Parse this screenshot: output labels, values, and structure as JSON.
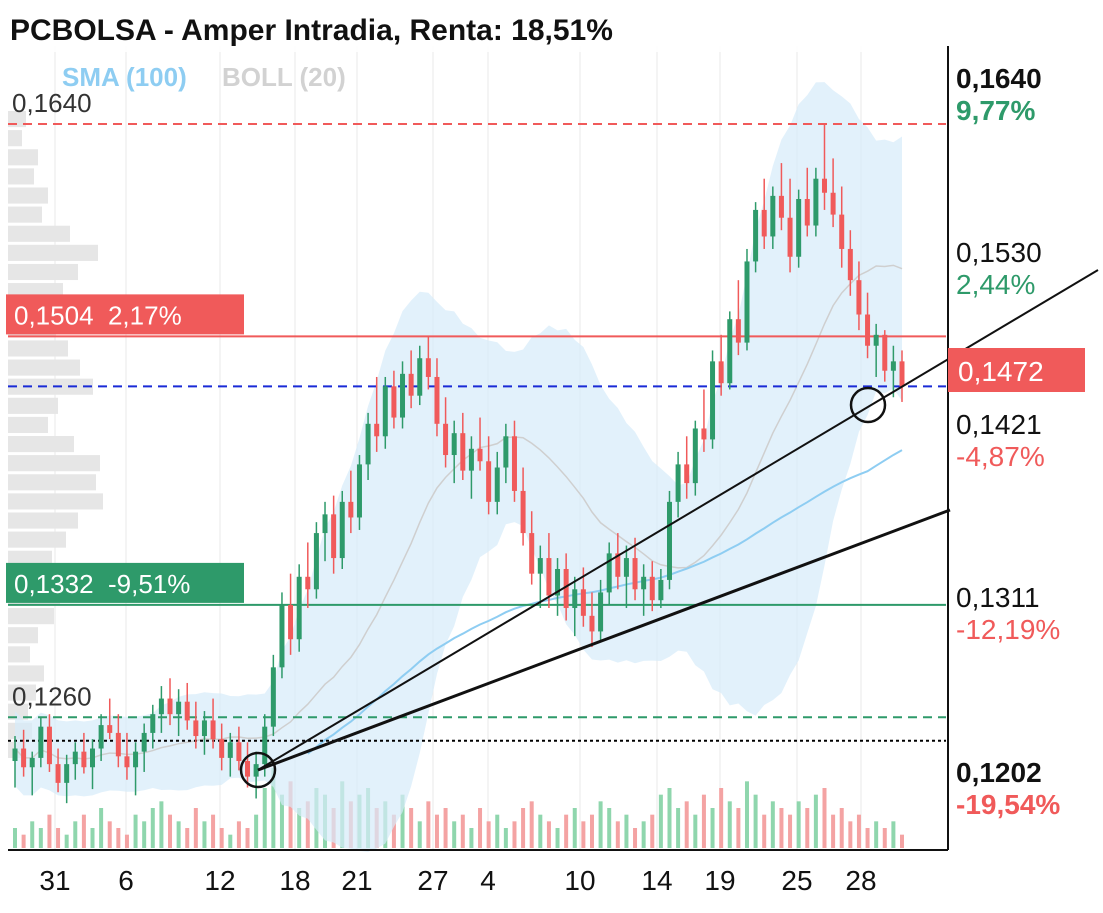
{
  "chart_data": {
    "type": "candlestick",
    "title": "PCBOLSA - Amper Intradia, Renta: 18,51%",
    "indicators": [
      {
        "label": "SMA (100)",
        "color": "#8ecdf2"
      },
      {
        "label": "BOLL (20)",
        "color": "#c9c9c9"
      }
    ],
    "x_ticks": [
      "31",
      "6",
      "12",
      "18",
      "21",
      "27",
      "4",
      "10",
      "14",
      "19",
      "25",
      "28"
    ],
    "y_range": [
      0.1175,
      0.169
    ],
    "right_axis": [
      {
        "price": 0.164,
        "price_label": "0,1640",
        "pct_label": "9,77%",
        "pct_color": "#2e9a6a",
        "bold": true
      },
      {
        "price": 0.153,
        "price_label": "0,1530",
        "pct_label": "2,44%",
        "pct_color": "#2e9a6a",
        "bold": false
      },
      {
        "price": 0.1421,
        "price_label": "0,1421",
        "pct_label": "-4,87%",
        "pct_color": "#f05a5a",
        "bold": false
      },
      {
        "price": 0.1311,
        "price_label": "0,1311",
        "pct_label": "-12,19%",
        "pct_color": "#f05a5a",
        "bold": false
      },
      {
        "price": 0.1202,
        "price_label": "0,1202",
        "pct_label": "-19,54%",
        "pct_color": "#f05a5a",
        "bold": true
      }
    ],
    "current_price": {
      "value": 0.1472,
      "label": "0,1472",
      "color": "#f05a5a"
    },
    "levels": [
      {
        "price": 0.164,
        "label": "0,1640",
        "style": "dashed",
        "color": "#f05a5a"
      },
      {
        "price": 0.1504,
        "label": "0,1504  2,17%",
        "style": "solid",
        "color": "#f05a5a"
      },
      {
        "price": 0.1472,
        "label": "",
        "style": "dashed",
        "color": "#1a2bd6"
      },
      {
        "price": 0.1332,
        "label": "0,1332  -9,51%",
        "style": "solid",
        "color": "#2e9a6a"
      },
      {
        "price": 0.126,
        "label": "0,1260",
        "style": "dashed",
        "color": "#2e9a6a"
      },
      {
        "price": 0.1245,
        "label": "",
        "style": "dotted",
        "color": "#000000"
      }
    ],
    "candles": [
      [
        0.1232,
        0.1248,
        0.1215,
        0.124
      ],
      [
        0.124,
        0.1252,
        0.1222,
        0.1228
      ],
      [
        0.1228,
        0.1238,
        0.121,
        0.1234
      ],
      [
        0.1234,
        0.126,
        0.1228,
        0.1254
      ],
      [
        0.1254,
        0.1262,
        0.1225,
        0.123
      ],
      [
        0.123,
        0.124,
        0.1212,
        0.1218
      ],
      [
        0.1218,
        0.1236,
        0.1205,
        0.123
      ],
      [
        0.123,
        0.1244,
        0.122,
        0.1238
      ],
      [
        0.1238,
        0.125,
        0.1224,
        0.1228
      ],
      [
        0.1228,
        0.1246,
        0.1214,
        0.124
      ],
      [
        0.124,
        0.1262,
        0.1232,
        0.1255
      ],
      [
        0.1255,
        0.1272,
        0.1246,
        0.125
      ],
      [
        0.125,
        0.1262,
        0.1228,
        0.1235
      ],
      [
        0.1235,
        0.125,
        0.122,
        0.1228
      ],
      [
        0.1228,
        0.1244,
        0.121,
        0.1238
      ],
      [
        0.1238,
        0.1256,
        0.1225,
        0.125
      ],
      [
        0.125,
        0.1268,
        0.124,
        0.1262
      ],
      [
        0.1262,
        0.128,
        0.125,
        0.1272
      ],
      [
        0.1272,
        0.1285,
        0.1255,
        0.1262
      ],
      [
        0.1262,
        0.1278,
        0.1248,
        0.127
      ],
      [
        0.127,
        0.1282,
        0.1252,
        0.1258
      ],
      [
        0.1258,
        0.127,
        0.124,
        0.1248
      ],
      [
        0.1248,
        0.1264,
        0.1236,
        0.1258
      ],
      [
        0.1258,
        0.1272,
        0.124,
        0.1246
      ],
      [
        0.1246,
        0.1256,
        0.1226,
        0.1234
      ],
      [
        0.1234,
        0.125,
        0.1222,
        0.1244
      ],
      [
        0.1244,
        0.1254,
        0.1226,
        0.1232
      ],
      [
        0.1232,
        0.1244,
        0.1215,
        0.1222
      ],
      [
        0.1222,
        0.1238,
        0.1208,
        0.123
      ],
      [
        0.123,
        0.1262,
        0.1222,
        0.1254
      ],
      [
        0.1254,
        0.13,
        0.1248,
        0.1292
      ],
      [
        0.1292,
        0.134,
        0.1285,
        0.1332
      ],
      [
        0.1332,
        0.1352,
        0.13,
        0.131
      ],
      [
        0.131,
        0.1358,
        0.1302,
        0.135
      ],
      [
        0.135,
        0.1372,
        0.133,
        0.1342
      ],
      [
        0.1342,
        0.1385,
        0.1336,
        0.1378
      ],
      [
        0.1378,
        0.1398,
        0.136,
        0.139
      ],
      [
        0.139,
        0.1402,
        0.1352,
        0.1362
      ],
      [
        0.1362,
        0.1405,
        0.1355,
        0.1398
      ],
      [
        0.1398,
        0.1418,
        0.1378,
        0.1388
      ],
      [
        0.1388,
        0.1428,
        0.138,
        0.1422
      ],
      [
        0.1422,
        0.1455,
        0.1412,
        0.1448
      ],
      [
        0.1448,
        0.1478,
        0.143,
        0.144
      ],
      [
        0.144,
        0.1478,
        0.1432,
        0.1472
      ],
      [
        0.1472,
        0.1482,
        0.1445,
        0.1452
      ],
      [
        0.1452,
        0.1488,
        0.1445,
        0.148
      ],
      [
        0.148,
        0.1495,
        0.1458,
        0.1466
      ],
      [
        0.1466,
        0.1498,
        0.146,
        0.149
      ],
      [
        0.149,
        0.1504,
        0.147,
        0.1478
      ],
      [
        0.1478,
        0.149,
        0.144,
        0.1448
      ],
      [
        0.1448,
        0.1465,
        0.142,
        0.1428
      ],
      [
        0.1428,
        0.145,
        0.141,
        0.1442
      ],
      [
        0.1442,
        0.1455,
        0.1412,
        0.1418
      ],
      [
        0.1418,
        0.144,
        0.14,
        0.1432
      ],
      [
        0.1432,
        0.1452,
        0.1418,
        0.1424
      ],
      [
        0.1424,
        0.144,
        0.139,
        0.1398
      ],
      [
        0.1398,
        0.143,
        0.139,
        0.142
      ],
      [
        0.142,
        0.1448,
        0.141,
        0.144
      ],
      [
        0.144,
        0.145,
        0.1398,
        0.1405
      ],
      [
        0.1405,
        0.142,
        0.137,
        0.1378
      ],
      [
        0.1378,
        0.1392,
        0.1345,
        0.1352
      ],
      [
        0.1352,
        0.137,
        0.133,
        0.1362
      ],
      [
        0.1362,
        0.1378,
        0.133,
        0.1338
      ],
      [
        0.1338,
        0.1362,
        0.1325,
        0.1355
      ],
      [
        0.1355,
        0.1365,
        0.1322,
        0.133
      ],
      [
        0.133,
        0.135,
        0.1312,
        0.1342
      ],
      [
        0.1342,
        0.1356,
        0.1318,
        0.1325
      ],
      [
        0.1325,
        0.134,
        0.1305,
        0.1315
      ],
      [
        0.1315,
        0.1348,
        0.1308,
        0.134
      ],
      [
        0.134,
        0.1372,
        0.1332,
        0.1365
      ],
      [
        0.1365,
        0.1378,
        0.1342,
        0.135
      ],
      [
        0.135,
        0.137,
        0.133,
        0.1362
      ],
      [
        0.1362,
        0.1375,
        0.1335,
        0.1342
      ],
      [
        0.1342,
        0.1358,
        0.1325,
        0.135
      ],
      [
        0.135,
        0.136,
        0.1328,
        0.1335
      ],
      [
        0.1335,
        0.1355,
        0.133,
        0.1348
      ],
      [
        0.1348,
        0.1405,
        0.1342,
        0.1398
      ],
      [
        0.1398,
        0.143,
        0.1388,
        0.1422
      ],
      [
        0.1422,
        0.144,
        0.14,
        0.141
      ],
      [
        0.141,
        0.145,
        0.1402,
        0.1445
      ],
      [
        0.1445,
        0.147,
        0.143,
        0.1438
      ],
      [
        0.1438,
        0.1495,
        0.1432,
        0.1488
      ],
      [
        0.1488,
        0.1505,
        0.1466,
        0.1474
      ],
      [
        0.1474,
        0.152,
        0.147,
        0.1515
      ],
      [
        0.1515,
        0.154,
        0.1492,
        0.15
      ],
      [
        0.15,
        0.156,
        0.1495,
        0.1552
      ],
      [
        0.1552,
        0.159,
        0.1545,
        0.1585
      ],
      [
        0.1585,
        0.1605,
        0.156,
        0.1568
      ],
      [
        0.1568,
        0.16,
        0.156,
        0.1594
      ],
      [
        0.1594,
        0.1615,
        0.1572,
        0.158
      ],
      [
        0.158,
        0.1605,
        0.1545,
        0.1555
      ],
      [
        0.1555,
        0.1598,
        0.1548,
        0.1592
      ],
      [
        0.1592,
        0.1612,
        0.1568,
        0.1575
      ],
      [
        0.1575,
        0.1612,
        0.1568,
        0.1605
      ],
      [
        0.1605,
        0.164,
        0.1585,
        0.1596
      ],
      [
        0.1596,
        0.1618,
        0.1574,
        0.1582
      ],
      [
        0.1582,
        0.16,
        0.1548,
        0.156
      ],
      [
        0.156,
        0.1572,
        0.153,
        0.154
      ],
      [
        0.154,
        0.1552,
        0.1508,
        0.1518
      ],
      [
        0.1518,
        0.1532,
        0.149,
        0.1498
      ],
      [
        0.1498,
        0.1512,
        0.1478,
        0.1505
      ],
      [
        0.1505,
        0.1508,
        0.1475,
        0.1482
      ],
      [
        0.1482,
        0.1498,
        0.1465,
        0.1488
      ],
      [
        0.1488,
        0.1495,
        0.1462,
        0.1472
      ]
    ],
    "volume": [
      3,
      2,
      4,
      3,
      5,
      3,
      2,
      4,
      5,
      3,
      6,
      4,
      3,
      2,
      5,
      4,
      6,
      7,
      5,
      4,
      3,
      6,
      4,
      5,
      3,
      2,
      4,
      3,
      5,
      9,
      12,
      8,
      10,
      6,
      7,
      9,
      8,
      6,
      10,
      7,
      8,
      9,
      6,
      7,
      5,
      8,
      6,
      4,
      7,
      5,
      6,
      4,
      5,
      3,
      6,
      4,
      5,
      3,
      4,
      6,
      7,
      5,
      4,
      3,
      5,
      6,
      4,
      5,
      7,
      6,
      4,
      5,
      3,
      4,
      5,
      8,
      9,
      6,
      7,
      5,
      8,
      6,
      9,
      7,
      6,
      10,
      8,
      5,
      7,
      6,
      5,
      7,
      6,
      8,
      9,
      5,
      6,
      4,
      5,
      3,
      4,
      3,
      4,
      2
    ]
  }
}
